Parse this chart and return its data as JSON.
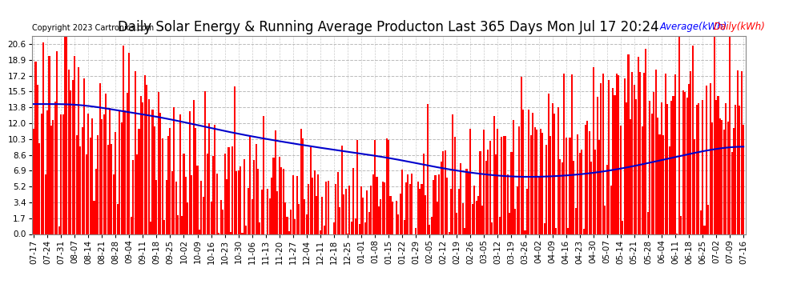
{
  "title": "Daily Solar Energy & Running Average Producton Last 365 Days Mon Jul 17 20:24",
  "copyright": "Copyright 2023 Cartronics.com",
  "legend_avg": "Average(kWh)",
  "legend_daily": "Daily(kWh)",
  "bar_color": "#ff0000",
  "avg_color": "#0000cc",
  "avg_color_label": "#0000ff",
  "daily_color_label": "#ff0000",
  "background_color": "#ffffff",
  "grid_color": "#aaaaaa",
  "yticks": [
    0.0,
    1.7,
    3.4,
    5.2,
    6.9,
    8.6,
    10.3,
    12.0,
    13.8,
    15.5,
    17.2,
    18.9,
    20.6
  ],
  "ylim": [
    0.0,
    21.5
  ],
  "title_fontsize": 12,
  "copyright_fontsize": 7,
  "tick_fontsize": 7.5,
  "num_days": 365
}
